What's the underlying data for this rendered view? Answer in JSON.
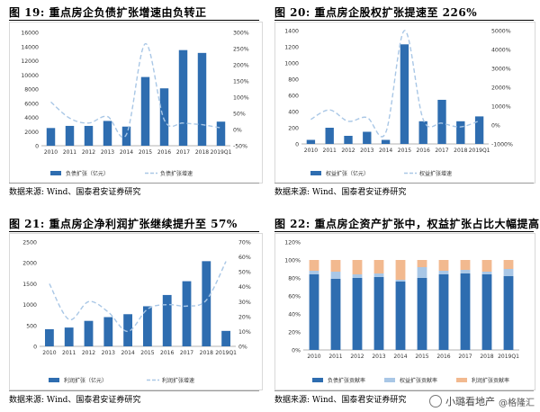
{
  "figures": [
    {
      "title": "图 19:   重点房企负债扩张增速由负转正",
      "source": "数据来源: Wind、国泰君安证券研究"
    },
    {
      "title": "图 20:   重点房企股权扩张提速至 226%",
      "source": "数据来源: Wind、国泰君安证券研究"
    },
    {
      "title": "图 21:   重点房企净利润扩张继续提升至 57%",
      "source": "数据来源: Wind、国泰君安证券研究"
    },
    {
      "title": "图 22:   重点房企资产扩张中，权益扩张占比大幅提高",
      "source": "数据来源: Wind、国泰君安证券研究"
    }
  ],
  "watermark": {
    "text": "小璐看地产",
    "sub": "@格隆汇"
  },
  "colors": {
    "bar": "#2e6db0",
    "line": "#a9c7e6",
    "equity": "#a9c7e6",
    "profit": "#f2b98f"
  },
  "chart_data": [
    {
      "type": "bar",
      "categories": [
        "2010",
        "2011",
        "2012",
        "2013",
        "2014",
        "2015",
        "2016",
        "2017",
        "2018",
        "2019Q1"
      ],
      "series": [
        {
          "name": "负债扩张（亿元）",
          "values": [
            2500,
            2800,
            2800,
            3500,
            2700,
            9700,
            8100,
            13500,
            13100,
            3400
          ]
        },
        {
          "name": "负债扩张增速",
          "type": "line",
          "axis": "right",
          "values": [
            85,
            35,
            20,
            40,
            -15,
            265,
            30,
            20,
            15,
            5
          ]
        }
      ],
      "ylim": [
        0,
        16000
      ],
      "yticks": [
        "0",
        "2000",
        "4000",
        "6000",
        "8000",
        "10000",
        "12000",
        "14000",
        "16000"
      ],
      "y2lim": [
        -50,
        300
      ],
      "y2ticks": [
        "-50%",
        "0%",
        "50%",
        "100%",
        "150%",
        "200%",
        "250%",
        "300%"
      ],
      "legend": "bottom"
    },
    {
      "type": "bar",
      "categories": [
        "2010",
        "2011",
        "2012",
        "2013",
        "2014",
        "2015",
        "2016",
        "2017",
        "2018",
        "2019Q1"
      ],
      "series": [
        {
          "name": "权益扩张（亿元）",
          "values": [
            50,
            200,
            100,
            150,
            50,
            1230,
            280,
            545,
            280,
            340
          ]
        },
        {
          "name": "权益扩张增速",
          "type": "line",
          "axis": "right",
          "values": [
            300,
            800,
            200,
            400,
            -400,
            5000,
            300,
            100,
            -100,
            226
          ]
        }
      ],
      "ylim": [
        0,
        1400
      ],
      "yticks": [
        "0",
        "200",
        "400",
        "600",
        "800",
        "1000",
        "1200",
        "1400"
      ],
      "y2lim": [
        -1000,
        5000
      ],
      "y2ticks": [
        "-1000%",
        "0%",
        "1000%",
        "2000%",
        "3000%",
        "4000%",
        "5000%"
      ],
      "legend": "bottom"
    },
    {
      "type": "bar",
      "categories": [
        "2010",
        "2011",
        "2012",
        "2013",
        "2014",
        "2015",
        "2016",
        "2017",
        "2018",
        "2019Q1"
      ],
      "series": [
        {
          "name": "利润扩张（亿元）",
          "values": [
            410,
            450,
            610,
            700,
            770,
            960,
            1230,
            1560,
            2040,
            370
          ]
        },
        {
          "name": "利润扩张增速",
          "type": "line",
          "axis": "right",
          "values": [
            42,
            18,
            30,
            23,
            10,
            25,
            28,
            27,
            31,
            57
          ]
        }
      ],
      "ylim": [
        0,
        2500
      ],
      "yticks": [
        "0",
        "500",
        "1000",
        "1500",
        "2000",
        "2500"
      ],
      "y2lim": [
        0,
        70
      ],
      "y2ticks": [
        "0%",
        "10%",
        "20%",
        "30%",
        "40%",
        "50%",
        "60%",
        "70%"
      ],
      "legend": "bottom"
    },
    {
      "type": "bar",
      "stacked": true,
      "categories": [
        "2010",
        "2011",
        "2012",
        "2013",
        "2014",
        "2015",
        "2016",
        "2017",
        "2018",
        "2019Q1"
      ],
      "series": [
        {
          "name": "负债扩张贡献率",
          "values": [
            84,
            79,
            80,
            81,
            76,
            80,
            84,
            85,
            84,
            82
          ]
        },
        {
          "name": "权益扩张贡献率",
          "values": [
            4,
            8,
            4,
            4,
            2,
            12,
            4,
            4,
            3,
            8
          ]
        },
        {
          "name": "利润扩张贡献率",
          "values": [
            12,
            13,
            16,
            15,
            22,
            8,
            12,
            11,
            13,
            10
          ]
        }
      ],
      "ylim": [
        0,
        120
      ],
      "yticks": [
        "0%",
        "20%",
        "40%",
        "60%",
        "80%",
        "100%",
        "120%"
      ],
      "legend": "bottom"
    }
  ]
}
